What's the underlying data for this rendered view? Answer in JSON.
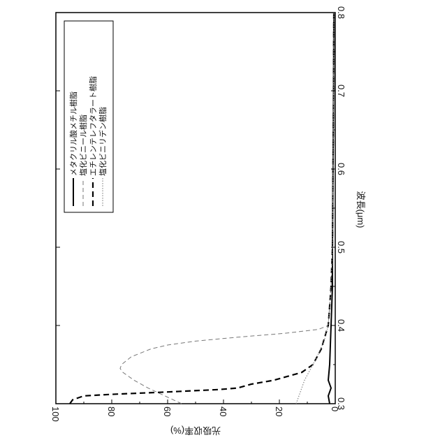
{
  "chart_data": {
    "type": "line",
    "orientation": "rotated 90° counter-clockwise (x axis vertical on right, y axis horizontal on bottom)",
    "xlabel": "波長(μm)",
    "ylabel": "光吸収率(%)",
    "xlim": [
      0.3,
      0.8
    ],
    "ylim": [
      0,
      100
    ],
    "x_ticks": [
      "0.3",
      "0.4",
      "0.5",
      "0.6",
      "0.7",
      "0.8"
    ],
    "y_ticks": [
      "0",
      "20",
      "40",
      "60",
      "80",
      "100"
    ],
    "grid": false,
    "legend_placement": "top-left (upper y region, high wavelength)",
    "series": [
      {
        "name": "メタクリル酸メチル樹脂",
        "style": "solid",
        "color": "#000000",
        "x": [
          0.3,
          0.31,
          0.32,
          0.33,
          0.35,
          0.4,
          0.45,
          0.5,
          0.6,
          0.7,
          0.8
        ],
        "y": [
          2,
          2.5,
          1.5,
          2.5,
          2,
          1.5,
          1,
          1,
          0.8,
          0.6,
          0.5
        ]
      },
      {
        "name": "塩化ビニール樹脂",
        "style": "dashed",
        "color": "#777777",
        "x": [
          0.3,
          0.31,
          0.32,
          0.33,
          0.34,
          0.345,
          0.35,
          0.36,
          0.37,
          0.375,
          0.38,
          0.385,
          0.39,
          0.395,
          0.4,
          0.45,
          0.5,
          0.6,
          0.7,
          0.8
        ],
        "y": [
          55,
          61,
          67,
          72,
          76,
          77,
          76.5,
          73,
          66,
          60,
          50,
          35,
          18,
          6,
          2.5,
          1.5,
          1,
          0.8,
          0.6,
          0.5
        ]
      },
      {
        "name": "エチレンテレフタラート樹脂",
        "style": "dashed-bold",
        "color": "#000000",
        "x": [
          0.3,
          0.305,
          0.31,
          0.312,
          0.315,
          0.318,
          0.32,
          0.325,
          0.33,
          0.34,
          0.35,
          0.37,
          0.4,
          0.45,
          0.5,
          0.6,
          0.7,
          0.8
        ],
        "y": [
          95,
          94,
          90,
          80,
          60,
          42,
          35,
          30,
          22,
          12,
          8,
          5,
          2.5,
          1.5,
          1,
          0.8,
          0.6,
          0.5
        ]
      },
      {
        "name": "塩化ビニリデン樹脂",
        "style": "dotted",
        "color": "#888888",
        "x": [
          0.3,
          0.31,
          0.32,
          0.33,
          0.34,
          0.35,
          0.36,
          0.38,
          0.4,
          0.45,
          0.5,
          0.6,
          0.7,
          0.8
        ],
        "y": [
          14,
          13,
          12,
          11,
          9.5,
          8,
          6.5,
          4,
          2.5,
          1.5,
          1,
          0.8,
          0.6,
          0.5
        ]
      }
    ]
  }
}
